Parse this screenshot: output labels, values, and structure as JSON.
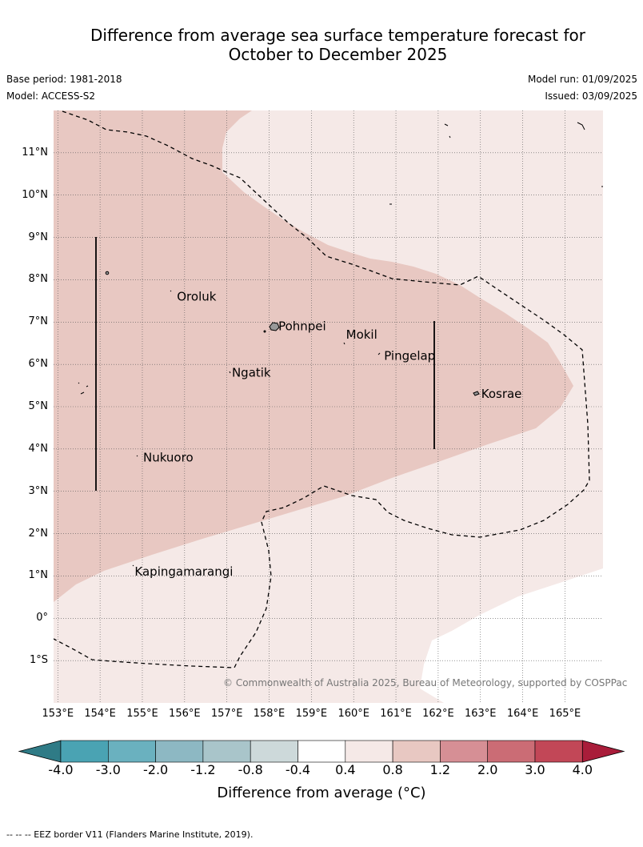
{
  "title": {
    "line1": "Difference from average sea surface temperature forecast for",
    "line2": "October to December 2025"
  },
  "meta": {
    "base_period": "Base period: 1981-2018",
    "model": "Model: ACCESS-S2",
    "model_run": "Model run: 01/09/2025",
    "issued": "Issued: 03/09/2025"
  },
  "axes": {
    "lat_labels": [
      "11°N",
      "10°N",
      "9°N",
      "8°N",
      "7°N",
      "6°N",
      "5°N",
      "4°N",
      "3°N",
      "2°N",
      "1°N",
      "0°",
      "1°S"
    ],
    "lon_labels": [
      "153°E",
      "154°E",
      "155°E",
      "156°E",
      "157°E",
      "158°E",
      "159°E",
      "160°E",
      "161°E",
      "162°E",
      "163°E",
      "164°E",
      "165°E"
    ],
    "lat_range": [
      -2.0,
      12.0
    ],
    "lon_range": [
      152.9,
      165.9
    ],
    "grid": true
  },
  "places": [
    {
      "name": "Oroluk",
      "lon": 155.8,
      "lat": 7.6
    },
    {
      "name": "Pohnpei",
      "lon": 158.2,
      "lat": 6.9
    },
    {
      "name": "Mokil",
      "lon": 159.8,
      "lat": 6.7
    },
    {
      "name": "Pingelap",
      "lon": 160.7,
      "lat": 6.2
    },
    {
      "name": "Ngatik",
      "lon": 157.1,
      "lat": 5.8
    },
    {
      "name": "Kosrae",
      "lon": 163.0,
      "lat": 5.3
    },
    {
      "name": "Nukuoro",
      "lon": 155.0,
      "lat": 3.8
    },
    {
      "name": "Kapingamarangi",
      "lon": 154.8,
      "lat": 1.1
    }
  ],
  "copyright": "© Commonwealth of Australia 2025, Bureau of Meteorology, supported by COSPPac",
  "colorbar": {
    "ticks": [
      "-4.0",
      "-3.0",
      "-2.0",
      "-1.2",
      "-0.8",
      "-0.4",
      "0.4",
      "0.8",
      "1.2",
      "2.0",
      "3.0",
      "4.0"
    ],
    "colors": [
      "#2f7b86",
      "#4aa3b3",
      "#6ab1bf",
      "#8db8c3",
      "#a9c5ca",
      "#cdd9da",
      "#ffffff",
      "#f5e9e7",
      "#e8c8c2",
      "#d68f95",
      "#cb6c75",
      "#c24757",
      "#a91d3a"
    ],
    "label": "Difference from average (°C)"
  },
  "footer": "-- -- -- EEZ border V11 (Flanders Marine Institute, 2019)."
}
